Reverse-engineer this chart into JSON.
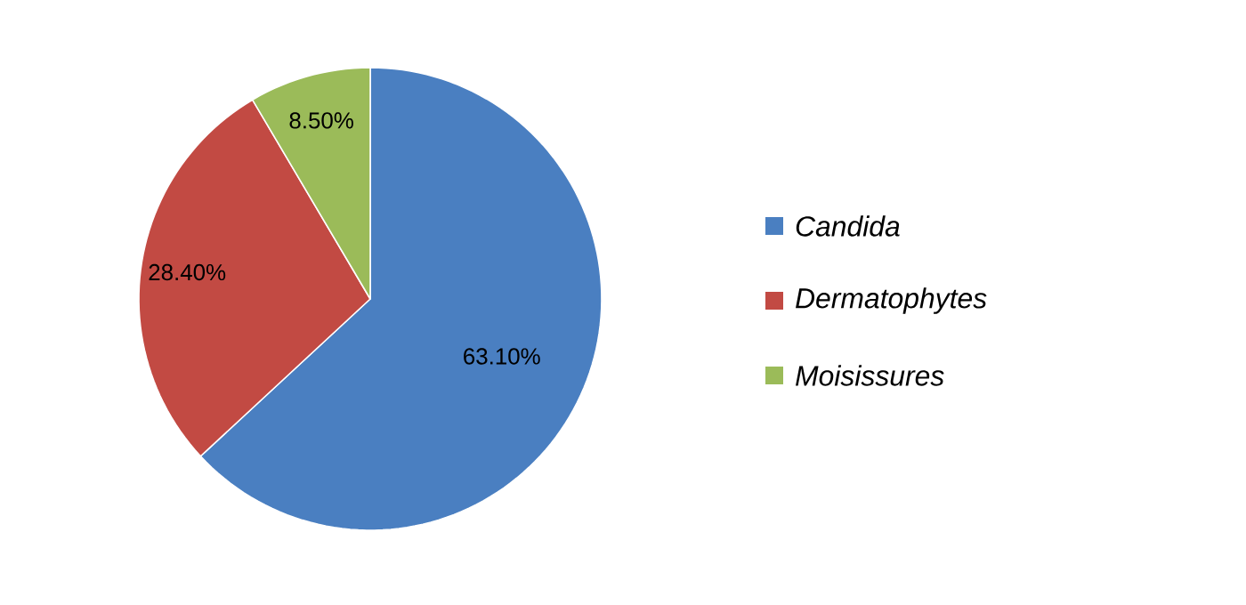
{
  "chart_data": {
    "type": "pie",
    "categories": [
      "Candida",
      "Dermatophytes",
      "Moisissures"
    ],
    "values": [
      63.1,
      28.4,
      8.5
    ],
    "value_labels": [
      "63.10%",
      "28.40%",
      "8.50%"
    ],
    "colors": [
      "#4a7fc1",
      "#c24a43",
      "#9bbb59"
    ],
    "legend": "right"
  }
}
